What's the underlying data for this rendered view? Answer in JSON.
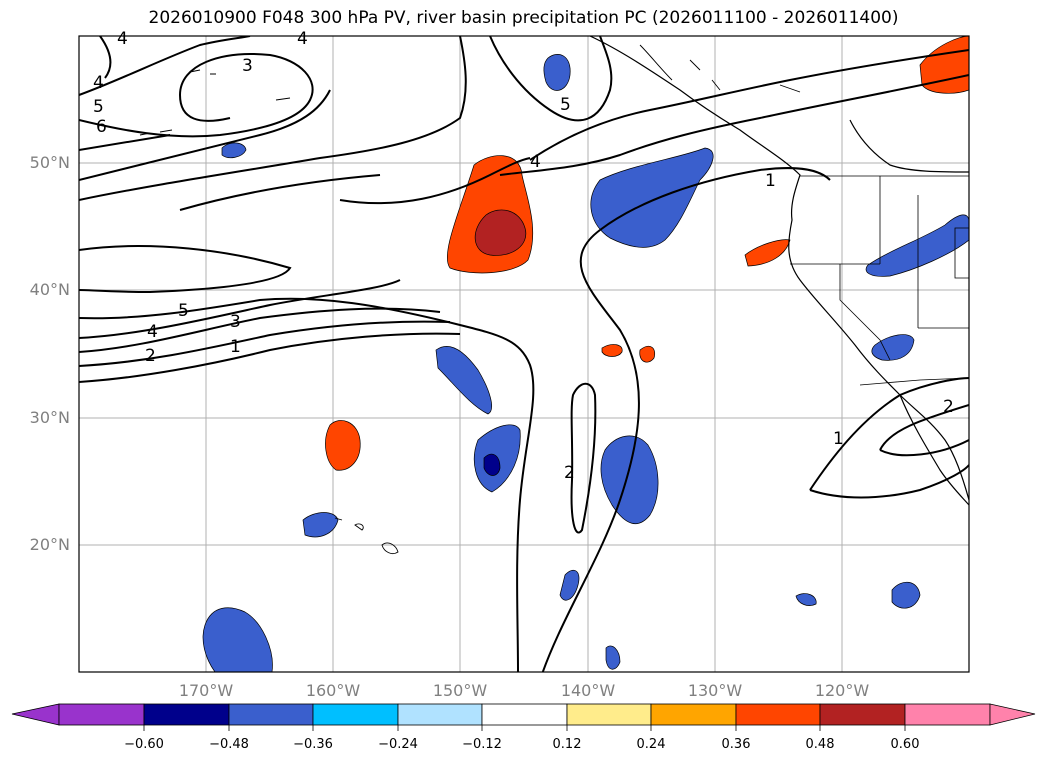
{
  "title": "2026010900 F048 300 hPa PV, river basin precipitation PC (2026011100 - 2026011400)",
  "map": {
    "region": "North Pacific and western North America",
    "lon_range": [
      -180,
      -110
    ],
    "lat_range": [
      10,
      60
    ],
    "lat_labels": [
      "50°N",
      "40°N",
      "30°N",
      "20°N"
    ],
    "lon_labels": [
      "170°W",
      "160°W",
      "150°W",
      "140°W",
      "130°W",
      "120°W"
    ],
    "contour_labels": [
      {
        "text": "4",
        "note": "top left"
      },
      {
        "text": "4",
        "note": "top"
      },
      {
        "text": "3"
      },
      {
        "text": "4"
      },
      {
        "text": "5"
      },
      {
        "text": "6"
      },
      {
        "text": "5",
        "note": "gulf of alaska"
      },
      {
        "text": "4",
        "note": "near anomaly"
      },
      {
        "text": "5",
        "note": "west"
      },
      {
        "text": "3",
        "note": "west"
      },
      {
        "text": "4",
        "note": "west lower"
      },
      {
        "text": "1",
        "note": "west"
      },
      {
        "text": "2",
        "note": "west"
      },
      {
        "text": "1",
        "note": "pacific northwest"
      },
      {
        "text": "2",
        "note": "central"
      },
      {
        "text": "1",
        "note": "baja"
      },
      {
        "text": "2",
        "note": "mexico"
      }
    ]
  },
  "colorbar": {
    "labels": [
      "−0.60",
      "−0.48",
      "−0.36",
      "−0.24",
      "−0.12",
      "0.12",
      "0.24",
      "0.36",
      "0.48",
      "0.60"
    ],
    "colors": [
      "#9933cc",
      "#00008b",
      "#3a5fcd",
      "#00bfff",
      "#b0e2ff",
      "#ffffff",
      "#ffec8b",
      "#ffa500",
      "#ff4500",
      "#b22222",
      "#ff82ab"
    ]
  }
}
